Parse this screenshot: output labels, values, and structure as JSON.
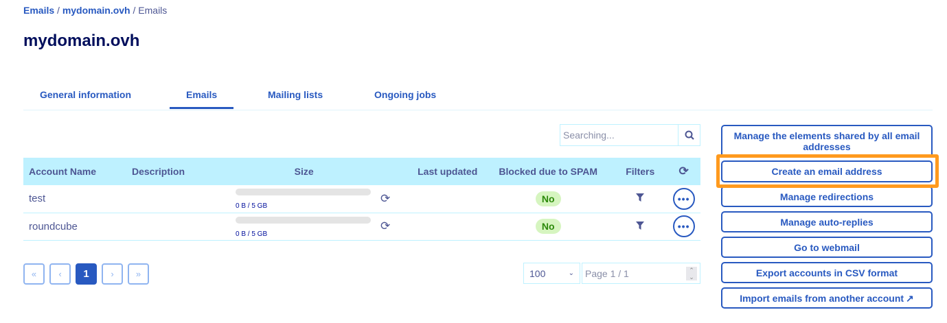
{
  "breadcrumb": [
    {
      "label": "Emails",
      "link": true
    },
    {
      "label": "mydomain.ovh",
      "link": true
    },
    {
      "label": "Emails",
      "link": false
    }
  ],
  "page_title": "mydomain.ovh",
  "tabs": [
    {
      "label": "General information"
    },
    {
      "label": "Emails",
      "active": true
    },
    {
      "label": "Mailing lists"
    },
    {
      "label": "Ongoing jobs"
    }
  ],
  "search": {
    "placeholder": "Searching...",
    "icon": "search-icon"
  },
  "table": {
    "columns": [
      "Account Name",
      "Description",
      "Size",
      "Last updated",
      "Blocked due to SPAM",
      "Filters"
    ],
    "rows": [
      {
        "account": "test",
        "description": "",
        "size": "0 B / 5 GB",
        "usage_percent": 0,
        "last_updated": "",
        "blocked": "No"
      },
      {
        "account": "roundcube",
        "description": "",
        "size": "0 B / 5 GB",
        "usage_percent": 0,
        "last_updated": "",
        "blocked": "No"
      }
    ]
  },
  "pagination": {
    "first": "«",
    "prev": "‹",
    "current": "1",
    "next": "›",
    "last": "»",
    "per_page": "100",
    "page_label": "Page 1 / 1"
  },
  "actions": [
    "Manage the elements shared by all email addresses",
    "Create an email address",
    "Manage redirections",
    "Manage auto-replies",
    "Go to webmail",
    "Export accounts in CSV format",
    "Import emails from another account"
  ],
  "colors": {
    "accent": "#2859c0",
    "header_bg": "#bef1ff",
    "highlight": "#ff9a1e",
    "badge_bg": "#d6f5c0"
  }
}
